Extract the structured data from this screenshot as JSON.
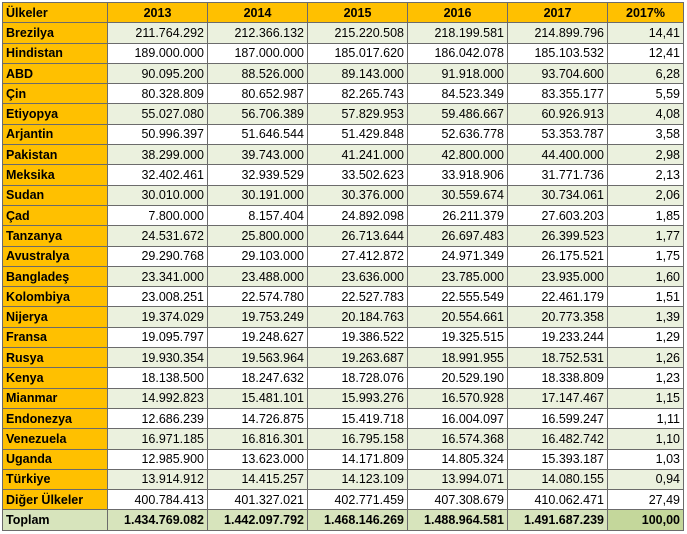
{
  "table": {
    "headers": [
      "Ülkeler",
      "2013",
      "2014",
      "2015",
      "2016",
      "2017",
      "2017%"
    ],
    "rows": [
      [
        "Brezilya",
        "211.764.292",
        "212.366.132",
        "215.220.508",
        "218.199.581",
        "214.899.796",
        "14,41"
      ],
      [
        "Hindistan",
        "189.000.000",
        "187.000.000",
        "185.017.620",
        "186.042.078",
        "185.103.532",
        "12,41"
      ],
      [
        "ABD",
        "90.095.200",
        "88.526.000",
        "89.143.000",
        "91.918.000",
        "93.704.600",
        "6,28"
      ],
      [
        "Çin",
        "80.328.809",
        "80.652.987",
        "82.265.743",
        "84.523.349",
        "83.355.177",
        "5,59"
      ],
      [
        "Etiyopya",
        "55.027.080",
        "56.706.389",
        "57.829.953",
        "59.486.667",
        "60.926.913",
        "4,08"
      ],
      [
        "Arjantin",
        "50.996.397",
        "51.646.544",
        "51.429.848",
        "52.636.778",
        "53.353.787",
        "3,58"
      ],
      [
        "Pakistan",
        "38.299.000",
        "39.743.000",
        "41.241.000",
        "42.800.000",
        "44.400.000",
        "2,98"
      ],
      [
        "Meksika",
        "32.402.461",
        "32.939.529",
        "33.502.623",
        "33.918.906",
        "31.771.736",
        "2,13"
      ],
      [
        "Sudan",
        "30.010.000",
        "30.191.000",
        "30.376.000",
        "30.559.674",
        "30.734.061",
        "2,06"
      ],
      [
        "Çad",
        "7.800.000",
        "8.157.404",
        "24.892.098",
        "26.211.379",
        "27.603.203",
        "1,85"
      ],
      [
        "Tanzanya",
        "24.531.672",
        "25.800.000",
        "26.713.644",
        "26.697.483",
        "26.399.523",
        "1,77"
      ],
      [
        "Avustralya",
        "29.290.768",
        "29.103.000",
        "27.412.872",
        "24.971.349",
        "26.175.521",
        "1,75"
      ],
      [
        "Bangladeş",
        "23.341.000",
        "23.488.000",
        "23.636.000",
        "23.785.000",
        "23.935.000",
        "1,60"
      ],
      [
        "Kolombiya",
        "23.008.251",
        "22.574.780",
        "22.527.783",
        "22.555.549",
        "22.461.179",
        "1,51"
      ],
      [
        "Nijerya",
        "19.374.029",
        "19.753.249",
        "20.184.763",
        "20.554.661",
        "20.773.358",
        "1,39"
      ],
      [
        "Fransa",
        "19.095.797",
        "19.248.627",
        "19.386.522",
        "19.325.515",
        "19.233.244",
        "1,29"
      ],
      [
        "Rusya",
        "19.930.354",
        "19.563.964",
        "19.263.687",
        "18.991.955",
        "18.752.531",
        "1,26"
      ],
      [
        "Kenya",
        "18.138.500",
        "18.247.632",
        "18.728.076",
        "20.529.190",
        "18.338.809",
        "1,23"
      ],
      [
        "Mianmar",
        "14.992.823",
        "15.481.101",
        "15.993.276",
        "16.570.928",
        "17.147.467",
        "1,15"
      ],
      [
        "Endonezya",
        "12.686.239",
        "14.726.875",
        "15.419.718",
        "16.004.097",
        "16.599.247",
        "1,11"
      ],
      [
        "Venezuela",
        "16.971.185",
        "16.816.301",
        "16.795.158",
        "16.574.368",
        "16.482.742",
        "1,10"
      ],
      [
        "Uganda",
        "12.985.900",
        "13.623.000",
        "14.171.809",
        "14.805.324",
        "15.393.187",
        "1,03"
      ],
      [
        "Türkiye",
        "13.914.912",
        "14.415.257",
        "14.123.109",
        "13.994.071",
        "14.080.155",
        "0,94"
      ],
      [
        "Diğer Ülkeler",
        "400.784.413",
        "401.327.021",
        "402.771.459",
        "407.308.679",
        "410.062.471",
        "27,49"
      ]
    ],
    "total": [
      "Toplam",
      "1.434.769.082",
      "1.442.097.792",
      "1.468.146.269",
      "1.488.964.581",
      "1.491.687.239",
      "100,00"
    ]
  }
}
